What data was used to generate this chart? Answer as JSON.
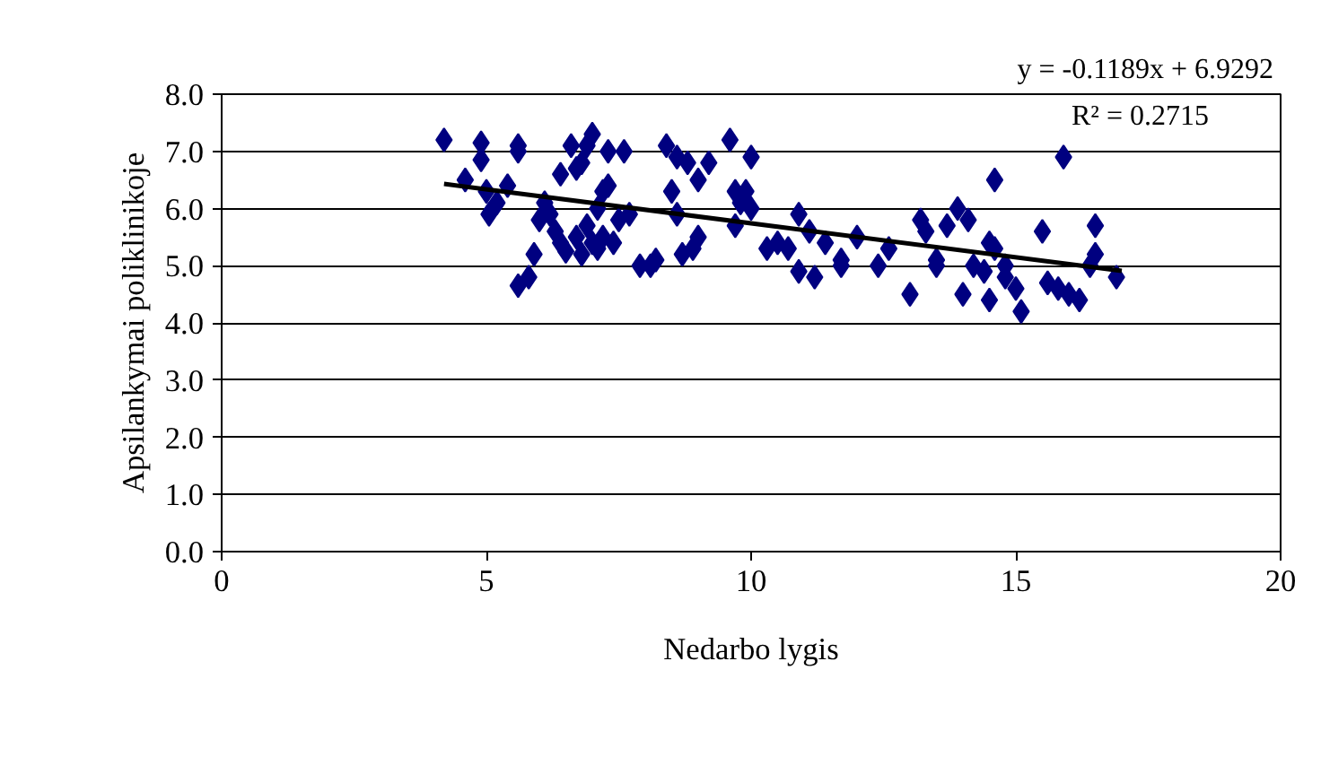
{
  "chart_data": {
    "type": "scatter",
    "xlabel": "Nedarbo lygis",
    "ylabel": "Apsilankymai poliklinikoje",
    "xlim": [
      0,
      20
    ],
    "xticks": [
      0,
      5,
      10,
      15,
      20
    ],
    "ylim": [
      0,
      8
    ],
    "yticks": [
      {
        "value": 0,
        "label": "0.0"
      },
      {
        "value": 1,
        "label": "1.0"
      },
      {
        "value": 2,
        "label": "2.0"
      },
      {
        "value": 3,
        "label": "3.0"
      },
      {
        "value": 4,
        "label": "4.0"
      },
      {
        "value": 5,
        "label": "5.0"
      },
      {
        "value": 6,
        "label": "6.0"
      },
      {
        "value": 7,
        "label": "7.0"
      },
      {
        "value": 8,
        "label": "8.0"
      }
    ],
    "grid": "y",
    "annotations": [
      "y = -0.1189x + 6.9292",
      "R² = 0.2715"
    ],
    "series": [
      {
        "marker": "diamond",
        "color": "#000080",
        "x": [
          4.2,
          4.6,
          4.9,
          4.9,
          5.0,
          5.05,
          5.2,
          5.4,
          5.6,
          5.6,
          5.6,
          5.8,
          5.9,
          6.0,
          6.1,
          6.2,
          6.3,
          6.4,
          6.4,
          6.5,
          6.6,
          6.7,
          6.7,
          6.8,
          6.8,
          6.9,
          6.9,
          7.0,
          7.0,
          7.1,
          7.1,
          7.2,
          7.2,
          7.3,
          7.3,
          7.4,
          7.5,
          7.6,
          7.7,
          7.9,
          8.1,
          8.2,
          8.4,
          8.5,
          8.6,
          8.6,
          8.7,
          8.8,
          8.9,
          9.0,
          9.0,
          9.2,
          9.6,
          9.7,
          9.7,
          9.8,
          9.9,
          10.0,
          10.0,
          10.3,
          10.5,
          10.7,
          10.9,
          10.9,
          11.1,
          11.2,
          11.4,
          11.7,
          11.7,
          12.0,
          12.4,
          12.6,
          13.0,
          13.2,
          13.3,
          13.5,
          13.5,
          13.7,
          13.9,
          14.0,
          14.1,
          14.2,
          14.4,
          14.5,
          14.5,
          14.6,
          14.6,
          14.8,
          14.8,
          15.0,
          15.1,
          15.5,
          15.6,
          15.8,
          15.9,
          16.0,
          16.2,
          16.4,
          16.5,
          16.5,
          16.9
        ],
        "values": [
          7.2,
          6.5,
          7.15,
          6.85,
          6.3,
          5.9,
          6.1,
          6.4,
          7.1,
          7.0,
          4.65,
          4.8,
          5.2,
          5.8,
          6.1,
          5.9,
          5.6,
          6.6,
          5.4,
          5.25,
          7.1,
          6.7,
          5.5,
          6.8,
          5.2,
          7.1,
          5.7,
          7.3,
          5.4,
          6.0,
          5.3,
          6.3,
          5.5,
          7.0,
          6.4,
          5.4,
          5.8,
          7.0,
          5.9,
          5.0,
          5.0,
          5.1,
          7.1,
          6.3,
          5.9,
          6.9,
          5.2,
          6.8,
          5.3,
          6.5,
          5.5,
          6.8,
          7.2,
          6.3,
          5.7,
          6.1,
          6.3,
          6.9,
          6.0,
          5.3,
          5.4,
          5.3,
          5.9,
          4.9,
          5.6,
          4.8,
          5.4,
          5.1,
          5.0,
          5.5,
          5.0,
          5.3,
          4.5,
          5.8,
          5.6,
          5.1,
          5.0,
          5.7,
          6.0,
          4.5,
          5.8,
          5.0,
          4.9,
          4.4,
          5.4,
          6.5,
          5.3,
          5.0,
          4.8,
          4.6,
          4.2,
          5.6,
          4.7,
          4.6,
          6.9,
          4.5,
          4.4,
          5.0,
          5.7,
          5.2,
          4.8
        ]
      },
      {
        "type": "line",
        "color": "#000000",
        "x": [
          4.2,
          17.0
        ],
        "values": [
          6.43,
          4.91
        ]
      }
    ]
  }
}
